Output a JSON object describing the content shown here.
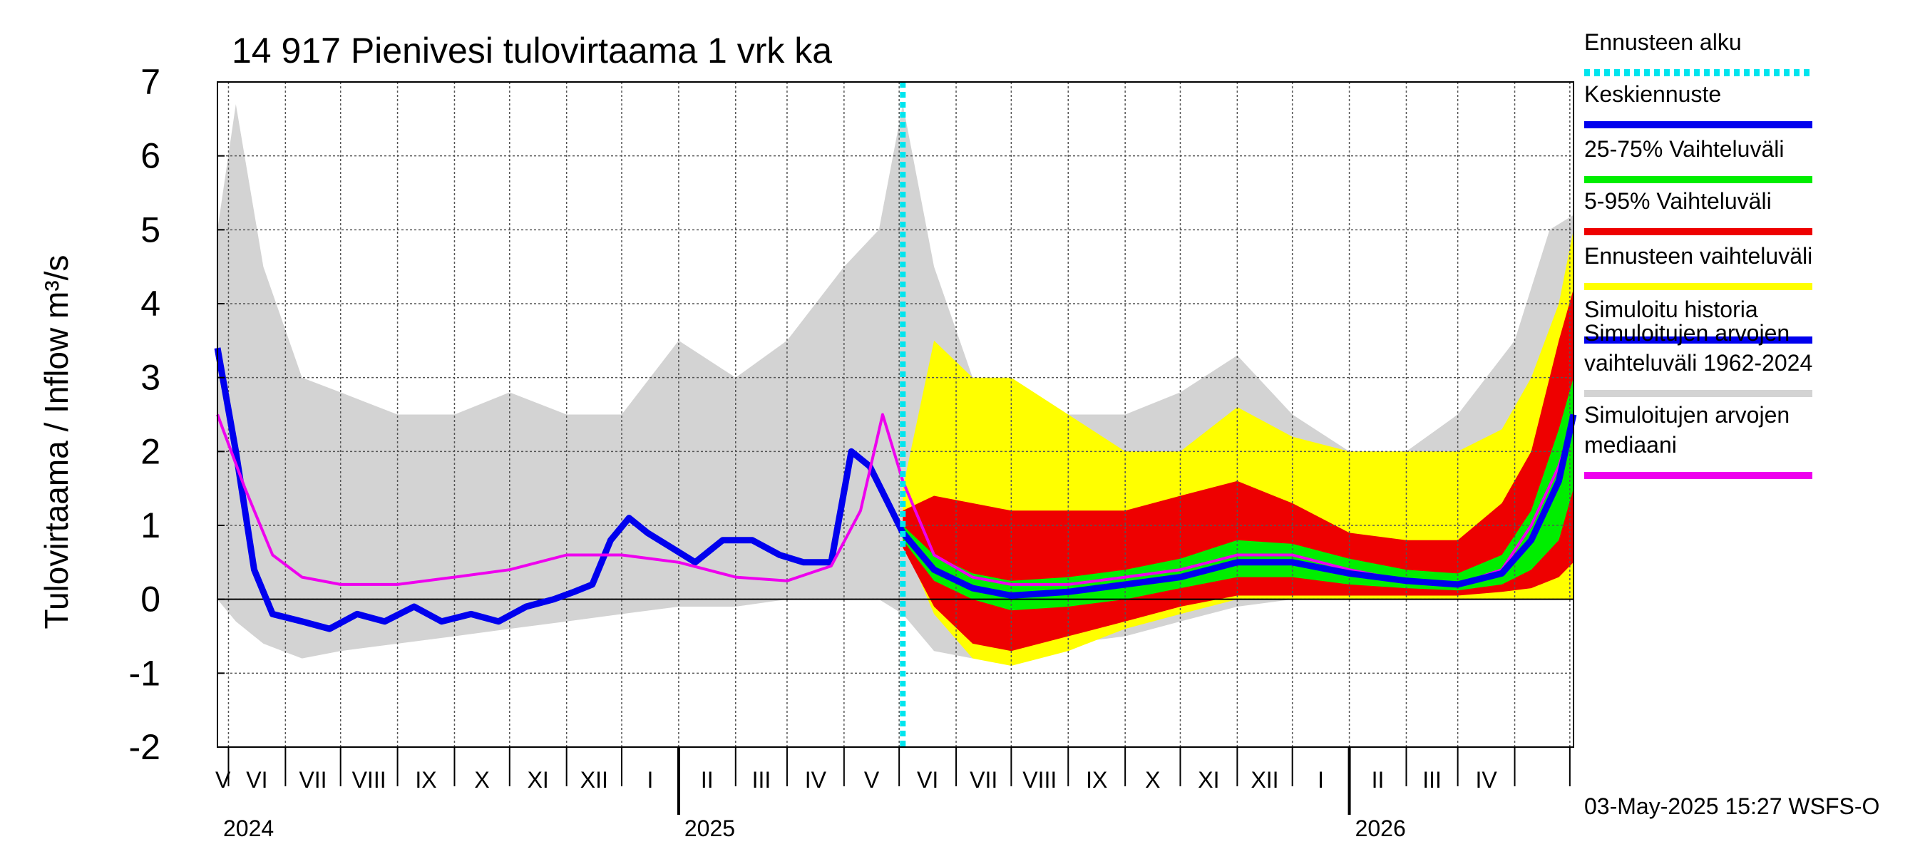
{
  "chart_data": {
    "type": "area",
    "title": "14 917 Pienivesi tulovirtaama 1 vrk ka",
    "ylabel": "Tulovirtaama / Inflow    m³/s",
    "ylim": [
      -2,
      7
    ],
    "yticks": [
      "-2",
      "-1",
      "0",
      "1",
      "2",
      "3",
      "4",
      "5",
      "6",
      "7"
    ],
    "x_start": "2024-04-25",
    "x_end": "2026-05-03",
    "forecast_start": "2025-05-03",
    "grid": true,
    "legend_position": "right",
    "month_labels": [
      "V",
      "VI",
      "VII",
      "VIII",
      "IX",
      "X",
      "XI",
      "XII",
      "I",
      "II",
      "III",
      "IV",
      "V",
      "VI",
      "VII",
      "VIII",
      "IX",
      "X",
      "XI",
      "XII",
      "I",
      "II",
      "III",
      "IV"
    ],
    "year_labels": [
      "2024",
      "2025",
      "2026"
    ],
    "footer": "03-May-2025 15:27 WSFS-O",
    "legend": [
      {
        "label": "Ennusteen alku",
        "color": "#00e5ee",
        "style": "dotted"
      },
      {
        "label": "Keskiennuste",
        "color": "#0000ee",
        "style": "solid"
      },
      {
        "label": "25-75% Vaihteluväli",
        "color": "#00ee00",
        "style": "solid"
      },
      {
        "label": "5-95% Vaihteluväli",
        "color": "#ee0000",
        "style": "solid"
      },
      {
        "label": "Ennusteen vaihteluväli",
        "color": "#ffff00",
        "style": "solid"
      },
      {
        "label": "Simuloitu historia",
        "color": "#0000ee",
        "style": "solid"
      },
      {
        "label": "Simuloitujen arvojen\nvaihteluväli 1962-2024",
        "color": "#d3d3d3",
        "style": "solid"
      },
      {
        "label": "Simuloitujen arvojen\nmediaani",
        "color": "#ee00ee",
        "style": "solid"
      }
    ],
    "series": [
      {
        "name": "Simuloitu historia",
        "color": "#0000ee",
        "x": [
          "2024-04-25",
          "2024-05-05",
          "2024-05-15",
          "2024-05-25",
          "2024-06-10",
          "2024-06-25",
          "2024-07-10",
          "2024-07-25",
          "2024-08-10",
          "2024-08-25",
          "2024-09-10",
          "2024-09-25",
          "2024-10-10",
          "2024-10-25",
          "2024-11-05",
          "2024-11-15",
          "2024-11-25",
          "2024-12-05",
          "2024-12-15",
          "2024-12-28",
          "2025-01-10",
          "2025-01-25",
          "2025-02-10",
          "2025-02-25",
          "2025-03-10",
          "2025-03-25",
          "2025-04-05",
          "2025-04-15",
          "2025-04-25",
          "2025-05-03"
        ],
        "y": [
          3.4,
          2.0,
          0.4,
          -0.2,
          -0.3,
          -0.4,
          -0.2,
          -0.3,
          -0.1,
          -0.3,
          -0.2,
          -0.3,
          -0.1,
          0.0,
          0.1,
          0.2,
          0.8,
          1.1,
          0.9,
          0.7,
          0.5,
          0.8,
          0.8,
          0.6,
          0.5,
          0.5,
          2.0,
          1.8,
          1.3,
          0.9
        ]
      },
      {
        "name": "Simuloitujen arvojen mediaani",
        "color": "#ee00ee",
        "x": [
          "2024-04-25",
          "2024-05-10",
          "2024-05-25",
          "2024-06-10",
          "2024-07-01",
          "2024-08-01",
          "2024-09-01",
          "2024-10-01",
          "2024-11-01",
          "2024-12-01",
          "2025-01-01",
          "2025-02-01",
          "2025-03-01",
          "2025-03-25",
          "2025-04-10",
          "2025-04-22",
          "2025-05-03",
          "2025-05-20",
          "2025-06-10",
          "2025-07-01",
          "2025-08-01",
          "2025-09-01",
          "2025-10-01",
          "2025-11-01",
          "2025-12-01",
          "2026-01-01",
          "2026-02-01",
          "2026-03-01",
          "2026-03-25",
          "2026-04-10",
          "2026-04-25",
          "2026-05-03"
        ],
        "y": [
          2.5,
          1.5,
          0.6,
          0.3,
          0.2,
          0.2,
          0.3,
          0.4,
          0.6,
          0.6,
          0.5,
          0.3,
          0.25,
          0.45,
          1.2,
          2.5,
          1.6,
          0.6,
          0.3,
          0.2,
          0.2,
          0.3,
          0.4,
          0.6,
          0.6,
          0.4,
          0.25,
          0.2,
          0.4,
          1.0,
          1.8,
          2.4
        ]
      },
      {
        "name": "Keskiennuste",
        "color": "#0000ee",
        "x": [
          "2025-05-03",
          "2025-05-20",
          "2025-06-10",
          "2025-07-01",
          "2025-08-01",
          "2025-09-01",
          "2025-10-01",
          "2025-11-01",
          "2025-12-01",
          "2026-01-01",
          "2026-02-01",
          "2026-03-01",
          "2026-03-25",
          "2026-04-10",
          "2026-04-25",
          "2026-05-03"
        ],
        "y": [
          0.9,
          0.4,
          0.15,
          0.05,
          0.1,
          0.2,
          0.3,
          0.5,
          0.5,
          0.35,
          0.25,
          0.2,
          0.35,
          0.8,
          1.6,
          2.5
        ]
      }
    ],
    "bands": [
      {
        "name": "Simuloitujen arvojen vaihteluväli 1962-2024",
        "color": "#d3d3d3",
        "x": [
          "2024-04-25",
          "2024-05-05",
          "2024-05-20",
          "2024-06-10",
          "2024-07-01",
          "2024-08-01",
          "2024-09-01",
          "2024-10-01",
          "2024-11-01",
          "2024-12-01",
          "2025-01-01",
          "2025-02-01",
          "2025-03-01",
          "2025-04-01",
          "2025-04-20",
          "2025-05-03",
          "2025-05-20",
          "2025-06-10",
          "2025-07-01",
          "2025-08-01",
          "2025-09-01",
          "2025-10-01",
          "2025-11-01",
          "2025-12-01",
          "2026-01-01",
          "2026-02-01",
          "2026-03-01",
          "2026-04-01",
          "2026-04-20",
          "2026-05-03"
        ],
        "low": [
          0.0,
          -0.3,
          -0.6,
          -0.8,
          -0.7,
          -0.6,
          -0.5,
          -0.4,
          -0.3,
          -0.2,
          -0.1,
          -0.1,
          0.0,
          0.0,
          0.0,
          -0.2,
          -0.7,
          -0.8,
          -0.7,
          -0.6,
          -0.5,
          -0.3,
          -0.1,
          0.0,
          0.0,
          0.0,
          0.0,
          0.0,
          0.0,
          0.0
        ],
        "high": [
          5.0,
          6.7,
          4.5,
          3.0,
          2.8,
          2.5,
          2.5,
          2.8,
          2.5,
          2.5,
          3.5,
          3.0,
          3.5,
          4.5,
          5.0,
          6.7,
          4.5,
          3.0,
          2.8,
          2.5,
          2.5,
          2.8,
          3.3,
          2.5,
          2.0,
          2.0,
          2.5,
          3.5,
          5.0,
          5.2
        ]
      },
      {
        "name": "Ennusteen vaihteluväli",
        "color": "#ffff00",
        "x": [
          "2025-05-03",
          "2025-05-20",
          "2025-06-10",
          "2025-07-01",
          "2025-08-01",
          "2025-09-01",
          "2025-10-01",
          "2025-11-01",
          "2025-12-01",
          "2026-01-01",
          "2026-02-01",
          "2026-03-01",
          "2026-03-25",
          "2026-04-10",
          "2026-04-25",
          "2026-05-03"
        ],
        "low": [
          0.8,
          -0.2,
          -0.8,
          -0.9,
          -0.7,
          -0.4,
          -0.2,
          0.0,
          0.0,
          0.0,
          0.0,
          0.0,
          0.0,
          0.0,
          0.0,
          0.0
        ],
        "high": [
          1.5,
          3.5,
          3.0,
          3.0,
          2.5,
          2.0,
          2.0,
          2.6,
          2.2,
          2.0,
          2.0,
          2.0,
          2.3,
          3.0,
          4.0,
          5.0
        ]
      },
      {
        "name": "5-95% Vaihteluväli",
        "color": "#ee0000",
        "x": [
          "2025-05-03",
          "2025-05-20",
          "2025-06-10",
          "2025-07-01",
          "2025-08-01",
          "2025-09-01",
          "2025-10-01",
          "2025-11-01",
          "2025-12-01",
          "2026-01-01",
          "2026-02-01",
          "2026-03-01",
          "2026-03-25",
          "2026-04-10",
          "2026-04-25",
          "2026-05-03"
        ],
        "low": [
          0.7,
          -0.1,
          -0.6,
          -0.7,
          -0.5,
          -0.3,
          -0.1,
          0.05,
          0.05,
          0.05,
          0.05,
          0.05,
          0.1,
          0.15,
          0.3,
          0.5
        ],
        "high": [
          1.2,
          1.4,
          1.3,
          1.2,
          1.2,
          1.2,
          1.4,
          1.6,
          1.3,
          0.9,
          0.8,
          0.8,
          1.3,
          2.0,
          3.5,
          4.2
        ]
      },
      {
        "name": "25-75% Vaihteluväli",
        "color": "#00ee00",
        "x": [
          "2025-05-03",
          "2025-05-20",
          "2025-06-10",
          "2025-07-01",
          "2025-08-01",
          "2025-09-01",
          "2025-10-01",
          "2025-11-01",
          "2025-12-01",
          "2026-01-01",
          "2026-02-01",
          "2026-03-01",
          "2026-03-25",
          "2026-04-10",
          "2026-04-25",
          "2026-05-03"
        ],
        "low": [
          0.8,
          0.25,
          0.0,
          -0.15,
          -0.1,
          0.0,
          0.15,
          0.3,
          0.3,
          0.2,
          0.15,
          0.12,
          0.2,
          0.4,
          0.8,
          1.5
        ],
        "high": [
          1.0,
          0.6,
          0.35,
          0.25,
          0.3,
          0.4,
          0.55,
          0.8,
          0.75,
          0.55,
          0.4,
          0.35,
          0.6,
          1.2,
          2.3,
          3.0
        ]
      }
    ]
  }
}
